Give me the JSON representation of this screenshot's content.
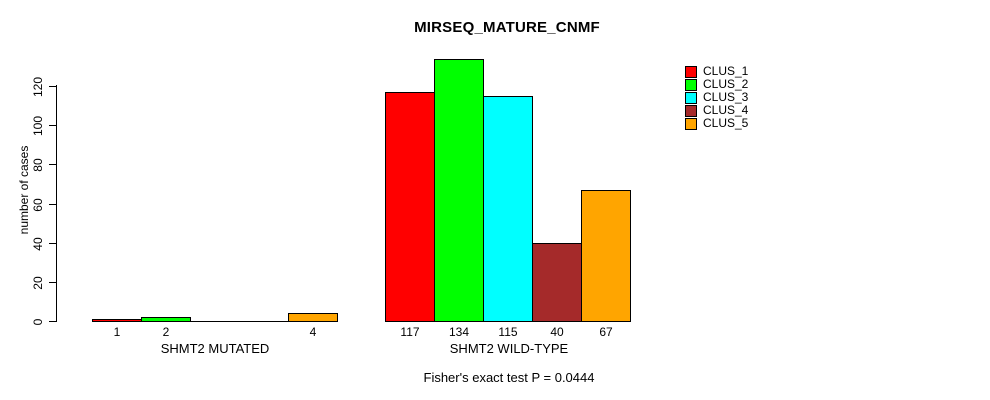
{
  "chart_data": {
    "type": "bar",
    "title": "MIRSEQ_MATURE_CNMF",
    "ylabel": "number of cases",
    "xlabel": "",
    "ylim": [
      0,
      134
    ],
    "yticks": [
      0,
      20,
      40,
      60,
      80,
      100,
      120
    ],
    "grid": false,
    "legend_position": "top-right",
    "show_zero_value_labels": false,
    "categories": [
      "SHMT2 MUTATED",
      "SHMT2 WILD-TYPE"
    ],
    "series": [
      {
        "name": "CLUS_1",
        "color": "#ff0000",
        "values": [
          1,
          117
        ]
      },
      {
        "name": "CLUS_2",
        "color": "#00ff00",
        "values": [
          2,
          134
        ]
      },
      {
        "name": "CLUS_3",
        "color": "#00ffff",
        "values": [
          0,
          115
        ]
      },
      {
        "name": "CLUS_4",
        "color": "#a52a2a",
        "values": [
          0,
          40
        ]
      },
      {
        "name": "CLUS_5",
        "color": "#ffa500",
        "values": [
          4,
          67
        ]
      }
    ],
    "annotation": "Fisher's exact test P = 0.0444",
    "axis_color": "#000000",
    "background_color": "#ffffff"
  }
}
